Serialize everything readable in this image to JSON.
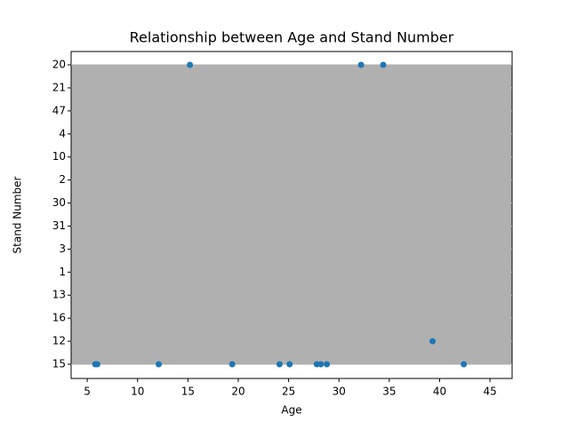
{
  "chart_data": {
    "type": "scatter",
    "title": "Relationship between Age and Stand Number",
    "xlabel": "Age",
    "ylabel": "Stand Number",
    "categories": [
      "15",
      "12",
      "16",
      "13",
      "1",
      "3",
      "31",
      "30",
      "2",
      "10",
      "4",
      "47",
      "21",
      "20"
    ],
    "x": [
      5.8,
      6.0,
      12.1,
      19.4,
      24.1,
      25.1,
      27.8,
      28.2,
      28.8,
      39.3,
      42.4,
      15.2,
      32.2,
      34.4
    ],
    "y": [
      "15",
      "15",
      "15",
      "15",
      "15",
      "15",
      "15",
      "15",
      "15",
      "12",
      "15",
      "20",
      "20",
      "20"
    ],
    "color": "#1f77b4",
    "xlim": [
      3.4,
      47.2
    ],
    "xticks": [
      5,
      10,
      15,
      20,
      25,
      30,
      35,
      40,
      45
    ],
    "grid": true
  }
}
